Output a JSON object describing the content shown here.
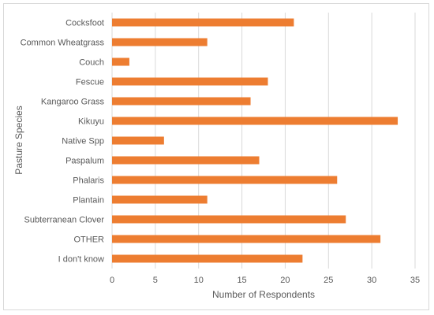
{
  "chart_data": {
    "type": "bar",
    "orientation": "horizontal",
    "categories": [
      "Cocksfoot",
      "Common Wheatgrass",
      "Couch",
      "Fescue",
      "Kangaroo Grass",
      "Kikuyu",
      "Native Spp",
      "Paspalum",
      "Phalaris",
      "Plantain",
      "Subterranean Clover",
      "OTHER",
      "I don't know"
    ],
    "values": [
      21,
      11,
      2,
      18,
      16,
      33,
      6,
      17,
      26,
      11,
      27,
      31,
      22
    ],
    "title": "",
    "xlabel": "Number of Respondents",
    "ylabel": "Pasture Species",
    "xlim": [
      0,
      35
    ],
    "xticks": [
      0,
      5,
      10,
      15,
      20,
      25,
      30,
      35
    ],
    "grid": "vertical",
    "legend": "none",
    "bar_color": "#ED7D31",
    "grid_color": "#D9D9D9",
    "text_color": "#595959"
  }
}
